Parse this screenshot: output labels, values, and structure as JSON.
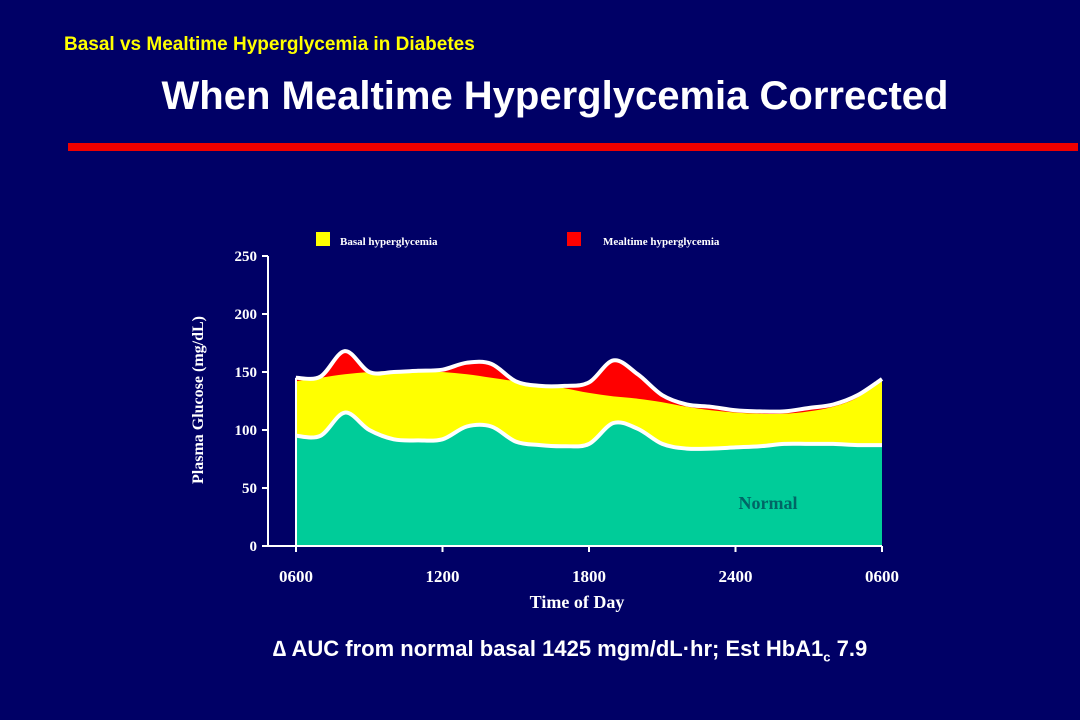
{
  "slide": {
    "subtitle": "Basal vs Mealtime Hyperglycemia in Diabetes",
    "title": "When Mealtime Hyperglycemia Corrected",
    "footer_delta": "∆",
    "footer_main": " AUC from normal basal 1425 mgm/dL·hr; Est HbA1",
    "footer_sub": "c",
    "footer_end": " 7.9"
  },
  "colors": {
    "background": "#000066",
    "basal": "#ffff00",
    "mealtime": "#ff0000",
    "normal": "#00cc99",
    "rule": "#ee0000"
  },
  "chart_data": {
    "type": "area",
    "xlabel": "Time of Day",
    "ylabel": "Plasma Glucose (mg/dL)",
    "ylim": [
      0,
      250
    ],
    "yticks": [
      0,
      50,
      100,
      150,
      200,
      250
    ],
    "xticks": [
      "0600",
      "1200",
      "1800",
      "2400",
      "0600"
    ],
    "x_hours": [
      6,
      7,
      8,
      9,
      10,
      11,
      12,
      13,
      14,
      15,
      16,
      17,
      18,
      19,
      20,
      21,
      22,
      23,
      24,
      25,
      26,
      27,
      28,
      29,
      30
    ],
    "series": [
      {
        "name": "Normal",
        "values": [
          95,
          95,
          115,
          100,
          92,
          91,
          92,
          103,
          103,
          90,
          87,
          86,
          88,
          106,
          101,
          88,
          84,
          84,
          85,
          86,
          88,
          88,
          88,
          87,
          87
        ]
      },
      {
        "name": "Basal hyperglycemia",
        "values": [
          142,
          145,
          148,
          150,
          151,
          151,
          150,
          148,
          145,
          142,
          139,
          136,
          132,
          129,
          127,
          124,
          120,
          117,
          115,
          114,
          114,
          116,
          120,
          128,
          144
        ]
      },
      {
        "name": "Mealtime hyperglycemia",
        "values": [
          145,
          146,
          168,
          150,
          150,
          151,
          152,
          158,
          157,
          142,
          138,
          138,
          141,
          160,
          148,
          130,
          122,
          120,
          117,
          116,
          116,
          119,
          122,
          130,
          144
        ]
      }
    ],
    "legend": [
      "Basal hyperglycemia",
      "Mealtime hyperglycemia"
    ],
    "legend_position": "top",
    "annotations": [
      "Normal"
    ]
  }
}
